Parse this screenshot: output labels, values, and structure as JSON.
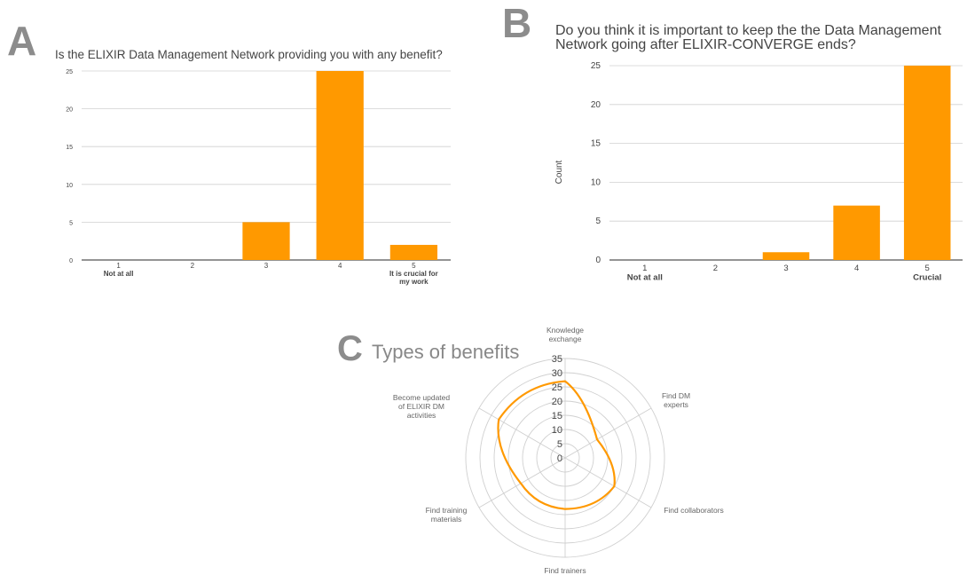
{
  "panels": {
    "a": {
      "letter": "A"
    },
    "b": {
      "letter": "B"
    },
    "c": {
      "letter": "C"
    }
  },
  "colors": {
    "bar": "#ff9900",
    "grid": "#d0d0d0",
    "axis": "#555555",
    "text": "#444444",
    "panel_letter": "#8c8c8c"
  },
  "chart_data": [
    {
      "type": "bar",
      "title": "Is the ELIXIR Data Management Network providing you with any benefit?",
      "categories": [
        "1\nNot at all",
        "2",
        "3",
        "4",
        "5\nIt is crucial for\nmy work"
      ],
      "values": [
        0,
        0,
        5,
        25,
        2
      ],
      "ylim": [
        0,
        25
      ],
      "yticks": [
        0,
        5,
        10,
        15,
        20,
        25
      ],
      "grid": true,
      "xlabel": "",
      "ylabel": ""
    },
    {
      "type": "bar",
      "title": "Do you think it is important to keep the the Data Management Network going after ELIXIR-CONVERGE ends?",
      "categories": [
        "1\nNot at all",
        "2",
        "3",
        "4",
        "5\nCrucial"
      ],
      "values": [
        0,
        0,
        1,
        7,
        25
      ],
      "ylim": [
        0,
        25
      ],
      "yticks": [
        0,
        5,
        10,
        15,
        20,
        25
      ],
      "grid": true,
      "xlabel": "",
      "ylabel": "Count"
    },
    {
      "type": "radar",
      "title": "Types of benefits",
      "categories": [
        "Knowledge\nexchange",
        "Find DM\nexperts",
        "Find collaborators",
        "Find trainers",
        "Find training\nmaterials",
        "Become updated\nof ELIXIR DM\nactivities"
      ],
      "values": [
        27,
        13,
        20,
        18,
        18,
        27
      ],
      "rlim": [
        0,
        35
      ],
      "rticks": [
        0,
        5,
        10,
        15,
        20,
        25,
        30,
        35
      ],
      "grid": true
    }
  ]
}
